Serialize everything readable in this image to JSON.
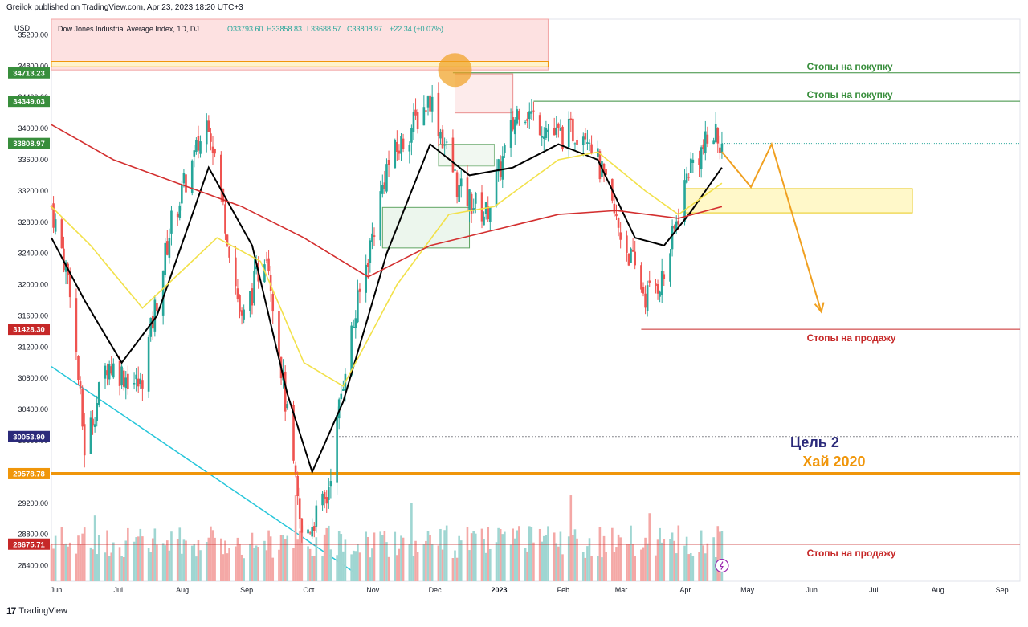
{
  "publisher": "Greilok published on TradingView.com, Apr 23, 2023 18:20 UTC+3",
  "footer": {
    "brand": "TradingView",
    "logo_text": "17"
  },
  "currency": "USD",
  "legend": {
    "symbol": "Dow Jones Industrial Average Index, 1D, DJ",
    "open": "O33793.60",
    "high": "H33858.83",
    "low": "L33688.57",
    "close": "C33808.97",
    "change": "+22.34 (+0.07%)"
  },
  "colors": {
    "up": "#26a69a",
    "down": "#ef5350",
    "vol_up": "#9fd6d2",
    "vol_down": "#f4a8a6",
    "ma_black": "#000000",
    "ma_yellow": "#f2e14a",
    "ma_red": "#d32f2f",
    "stop_buy": "#388e3c",
    "stop_sell": "#c62828",
    "target": "#2b2a7a",
    "high_2020": "#f0960a",
    "trend": "#26c6da",
    "forecast": "#f0a020"
  },
  "chart_data": {
    "type": "candlestick",
    "ylim": [
      28200,
      35400
    ],
    "y_ticks": [
      28400,
      28800,
      29200,
      29600,
      30000,
      30400,
      30800,
      31200,
      31600,
      32000,
      32400,
      32800,
      33200,
      33600,
      34000,
      34400,
      34800,
      35200
    ],
    "y_tick_labels": [
      "28400.00",
      "28800.00",
      "29200.00",
      "29600.00",
      "30000.00",
      "30400.00",
      "30800.00",
      "31200.00",
      "31600.00",
      "32000.00",
      "32400.00",
      "32800.00",
      "33200.00",
      "33600.00",
      "34000.00",
      "34400.00",
      "34800.00",
      "35200.00"
    ],
    "x_labels": [
      "Jun",
      "Jul",
      "Aug",
      "Sep",
      "Oct",
      "Nov",
      "Dec",
      "2023",
      "Feb",
      "Mar",
      "Apr",
      "May",
      "Jun",
      "Jul",
      "Aug",
      "Sep"
    ],
    "x_label_dates": [
      "2022-06-01",
      "2022-07-01",
      "2022-08-01",
      "2022-09-01",
      "2022-10-01",
      "2022-11-01",
      "2022-12-01",
      "2023-01-01",
      "2023-02-01",
      "2023-03-01",
      "2023-04-01",
      "2023-05-01",
      "2023-06-01",
      "2023-07-01",
      "2023-08-01",
      "2023-09-01"
    ],
    "x_range": [
      "2022-06-01",
      "2023-09-12"
    ],
    "price_points": [
      [
        "2022-06-01",
        33000
      ],
      [
        "2022-06-10",
        32000
      ],
      [
        "2022-06-17",
        29900
      ],
      [
        "2022-06-28",
        31000
      ],
      [
        "2022-07-14",
        30700
      ],
      [
        "2022-07-29",
        32800
      ],
      [
        "2022-08-16",
        34150
      ],
      [
        "2022-09-01",
        31500
      ],
      [
        "2022-09-13",
        32500
      ],
      [
        "2022-09-30",
        28750
      ],
      [
        "2022-10-12",
        29250
      ],
      [
        "2022-10-21",
        31000
      ],
      [
        "2022-11-10",
        33500
      ],
      [
        "2022-12-01",
        34400
      ],
      [
        "2022-12-15",
        33200
      ],
      [
        "2022-12-28",
        32900
      ],
      [
        "2023-01-13",
        34300
      ],
      [
        "2023-01-31",
        33900
      ],
      [
        "2023-02-15",
        34000
      ],
      [
        "2023-03-01",
        32800
      ],
      [
        "2023-03-15",
        31850
      ],
      [
        "2023-03-24",
        32100
      ],
      [
        "2023-04-05",
        33500
      ],
      [
        "2023-04-18",
        33950
      ],
      [
        "2023-04-21",
        33808.97
      ]
    ],
    "moving_averages": [
      {
        "color": "black",
        "points": [
          [
            "2022-06-01",
            32600
          ],
          [
            "2022-06-17",
            31800
          ],
          [
            "2022-07-05",
            31000
          ],
          [
            "2022-07-22",
            31600
          ],
          [
            "2022-08-16",
            33500
          ],
          [
            "2022-09-06",
            32500
          ],
          [
            "2022-09-23",
            30600
          ],
          [
            "2022-10-05",
            29600
          ],
          [
            "2022-10-20",
            30500
          ],
          [
            "2022-11-10",
            32400
          ],
          [
            "2022-12-01",
            33800
          ],
          [
            "2022-12-20",
            33400
          ],
          [
            "2023-01-10",
            33500
          ],
          [
            "2023-02-01",
            33800
          ],
          [
            "2023-02-20",
            33600
          ],
          [
            "2023-03-10",
            32600
          ],
          [
            "2023-03-24",
            32500
          ],
          [
            "2023-04-05",
            32900
          ],
          [
            "2023-04-21",
            33500
          ]
        ]
      },
      {
        "color": "yellow",
        "points": [
          [
            "2022-06-01",
            33000
          ],
          [
            "2022-06-20",
            32500
          ],
          [
            "2022-07-15",
            31700
          ],
          [
            "2022-08-20",
            32600
          ],
          [
            "2022-09-10",
            32300
          ],
          [
            "2022-10-01",
            31000
          ],
          [
            "2022-10-20",
            30700
          ],
          [
            "2022-11-15",
            32000
          ],
          [
            "2022-12-10",
            32900
          ],
          [
            "2023-01-01",
            33000
          ],
          [
            "2023-02-01",
            33600
          ],
          [
            "2023-02-20",
            33700
          ],
          [
            "2023-03-15",
            33200
          ],
          [
            "2023-03-31",
            32900
          ],
          [
            "2023-04-21",
            33300
          ]
        ]
      },
      {
        "color": "red",
        "points": [
          [
            "2022-06-01",
            34050
          ],
          [
            "2022-07-01",
            33600
          ],
          [
            "2022-08-01",
            33300
          ],
          [
            "2022-09-01",
            33000
          ],
          [
            "2022-10-01",
            32600
          ],
          [
            "2022-11-01",
            32100
          ],
          [
            "2022-12-01",
            32500
          ],
          [
            "2023-01-01",
            32700
          ],
          [
            "2023-02-01",
            32900
          ],
          [
            "2023-03-01",
            32950
          ],
          [
            "2023-03-31",
            32850
          ],
          [
            "2023-04-21",
            33000
          ]
        ]
      }
    ],
    "price_labels": [
      {
        "value": 34713.23,
        "text": "34713.23",
        "color": "#388e3c"
      },
      {
        "value": 34349.03,
        "text": "34349.03",
        "color": "#388e3c"
      },
      {
        "value": 33808.97,
        "text": "33808.97",
        "color": "#388e3c"
      },
      {
        "value": 31428.3,
        "text": "31428.30",
        "color": "#c62828"
      },
      {
        "value": 30053.9,
        "text": "30053.90",
        "color": "#2b2a7a"
      },
      {
        "value": 29578.78,
        "text": "29578.78",
        "color": "#f0960a"
      },
      {
        "value": 28675.71,
        "text": "28675.71",
        "color": "#c62828"
      }
    ],
    "annotations": [
      {
        "text": "Стопы на покупку",
        "value": 34713.23,
        "color": "#388e3c"
      },
      {
        "text": "Стопы на покупку",
        "value": 34349.03,
        "color": "#388e3c"
      },
      {
        "text": "Стопы на продажу",
        "value": 31428.3,
        "color": "#c62828"
      },
      {
        "text": "Цель 2",
        "value": 30053.9,
        "color": "#2b2a7a"
      },
      {
        "text": "Хай 2020",
        "value": 29578.78,
        "color": "#f0960a"
      },
      {
        "text": "Стопы на продажу",
        "value": 28675.71,
        "color": "#c62828"
      }
    ],
    "forecast_path": [
      [
        "2023-04-21",
        33700
      ],
      [
        "2023-05-05",
        33250
      ],
      [
        "2023-05-15",
        33800
      ],
      [
        "2023-06-08",
        31650
      ]
    ]
  }
}
